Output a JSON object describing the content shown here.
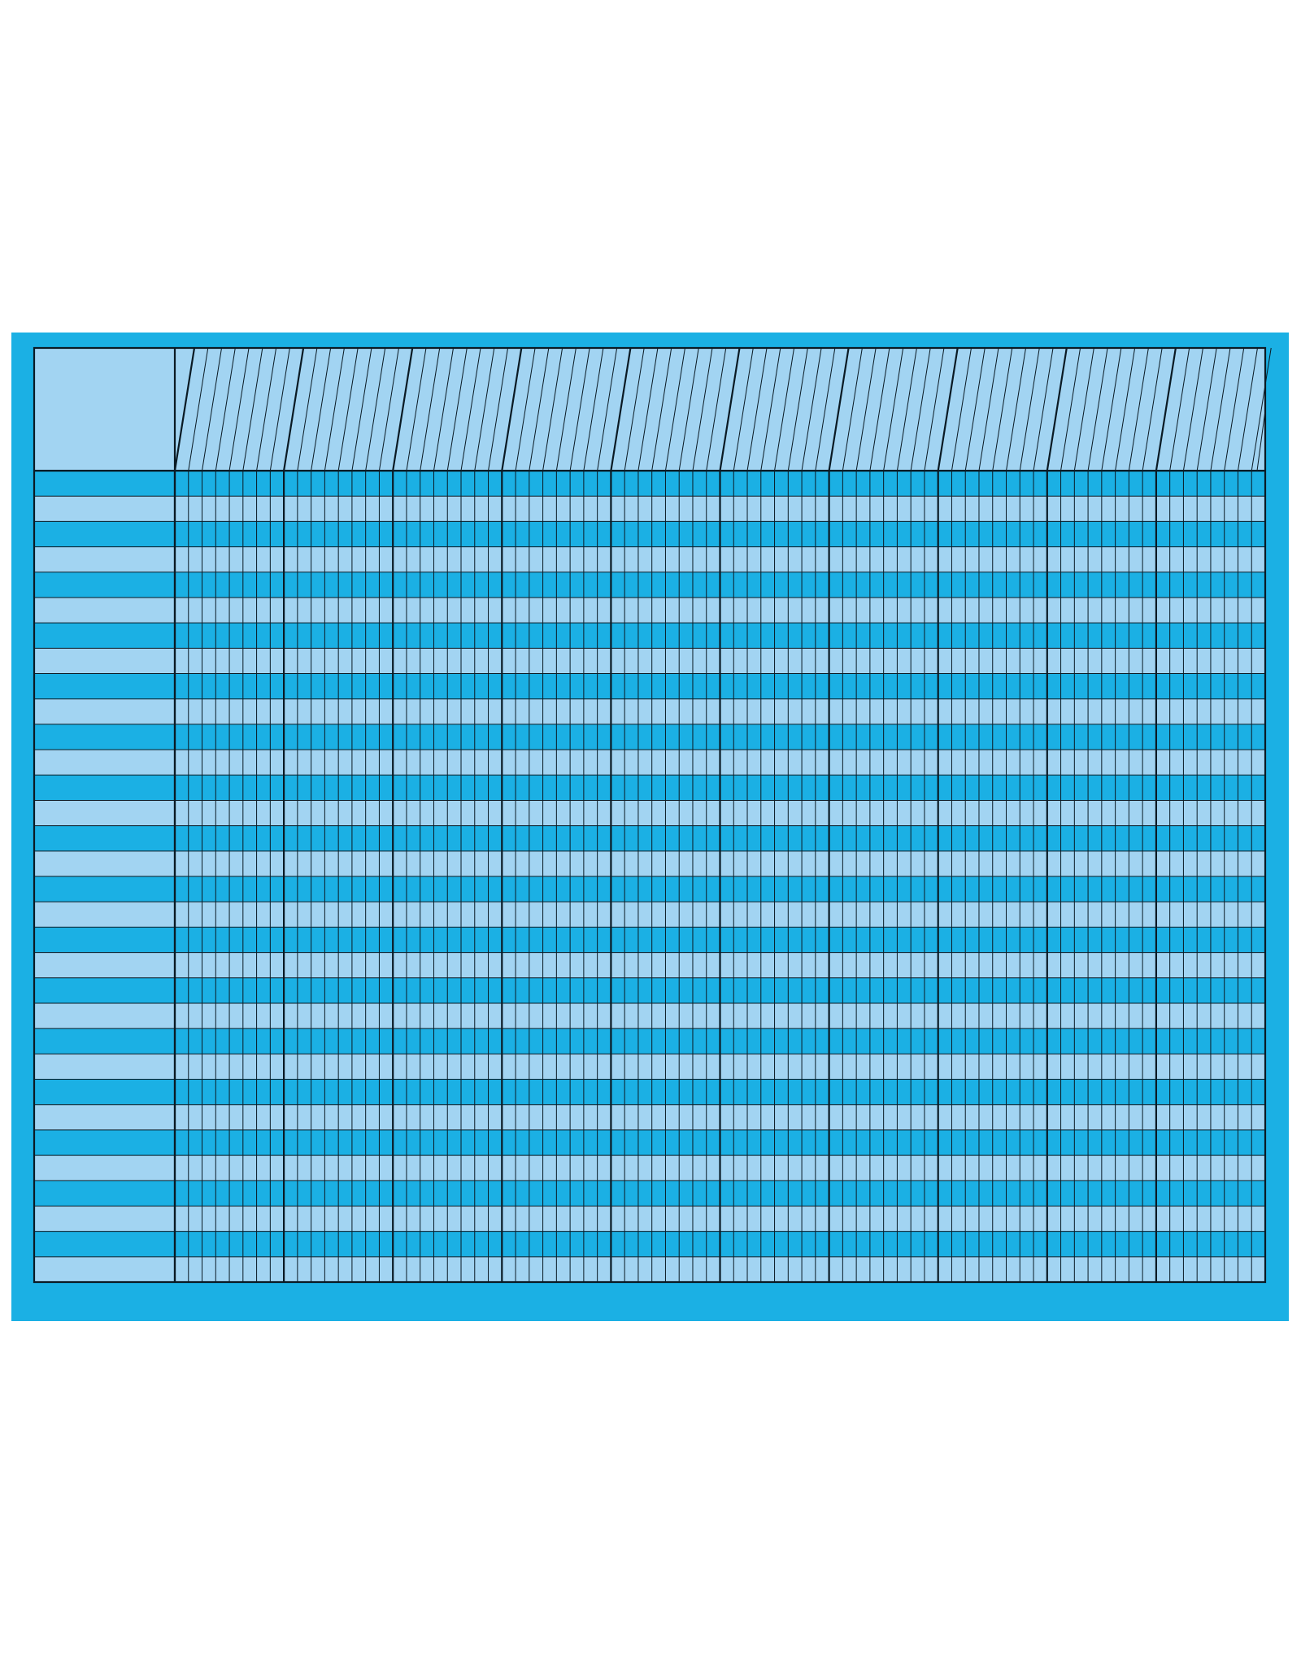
{
  "chart": {
    "kind": "blank incentive chart",
    "label_column_count": 1,
    "group_count": 10,
    "subcolumns_per_group": 8,
    "row_count": 32,
    "header_labels": []
  },
  "colors": {
    "frame": "#1bb0e4",
    "row_dark": "#1bb0e4",
    "row_light": "#a2d4f2",
    "header_fill": "#a2d4f2",
    "line": "#0a1a24",
    "page_background": "#ffffff"
  }
}
